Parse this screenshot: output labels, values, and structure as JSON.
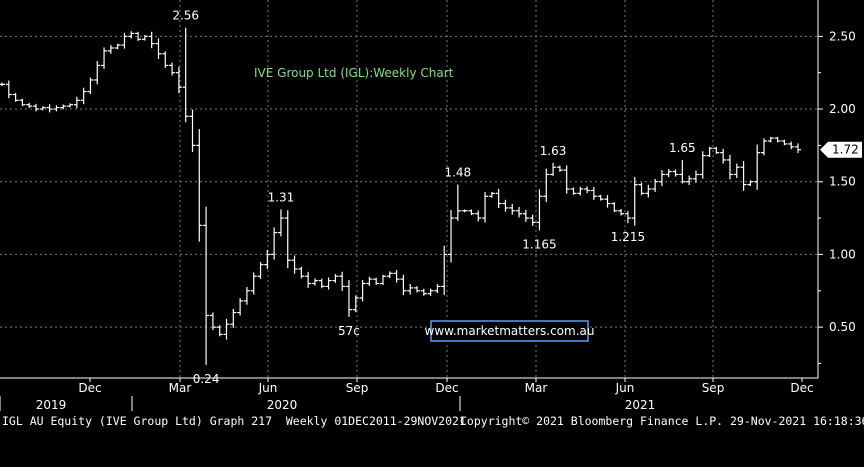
{
  "chart_data": {
    "type": "ohlc",
    "title": "IVE Group Ltd (IGL):Weekly Chart",
    "ylim": [
      0.15,
      2.75
    ],
    "y_ticks": [
      0.5,
      1.0,
      1.5,
      2.0,
      2.5
    ],
    "y_tick_labels": [
      "0.50",
      "1.00",
      "1.50",
      "2.00",
      "2.50"
    ],
    "last_price_label": "1.72",
    "last_price": 1.72,
    "x_month_labels": [
      "Dec",
      "Mar",
      "Jun",
      "Sep",
      "Dec",
      "Mar",
      "Jun",
      "Sep",
      "Dec"
    ],
    "x_year_labels": [
      "2019",
      "2020",
      "2021"
    ],
    "grid": true,
    "weekly_close": [
      2.17,
      2.1,
      2.06,
      2.03,
      2.02,
      2.0,
      2.01,
      2.0,
      2.01,
      2.02,
      2.03,
      2.06,
      2.12,
      2.2,
      2.3,
      2.4,
      2.42,
      2.44,
      2.5,
      2.52,
      2.48,
      2.5,
      2.45,
      2.38,
      2.3,
      2.25,
      2.15,
      1.95,
      1.75,
      1.2,
      0.58,
      0.5,
      0.45,
      0.52,
      0.6,
      0.68,
      0.75,
      0.85,
      0.93,
      1.0,
      1.15,
      1.25,
      0.96,
      0.9,
      0.85,
      0.8,
      0.82,
      0.78,
      0.82,
      0.85,
      0.78,
      0.62,
      0.7,
      0.8,
      0.83,
      0.8,
      0.85,
      0.87,
      0.83,
      0.75,
      0.77,
      0.75,
      0.73,
      0.75,
      0.78,
      1.0,
      1.25,
      1.3,
      1.3,
      1.28,
      1.25,
      1.4,
      1.42,
      1.35,
      1.32,
      1.3,
      1.28,
      1.25,
      1.22,
      1.4,
      1.55,
      1.6,
      1.58,
      1.45,
      1.42,
      1.45,
      1.44,
      1.4,
      1.38,
      1.35,
      1.3,
      1.28,
      1.25,
      1.48,
      1.42,
      1.45,
      1.5,
      1.55,
      1.57,
      1.55,
      1.5,
      1.52,
      1.55,
      1.68,
      1.73,
      1.7,
      1.65,
      1.55,
      1.6,
      1.48,
      1.5,
      1.7,
      1.78,
      1.8,
      1.78,
      1.76,
      1.74,
      1.72
    ],
    "annotations": [
      {
        "text": "2.56",
        "x": 27,
        "y": 2.56,
        "pos": "above"
      },
      {
        "text": "0.24",
        "x": 30,
        "y": 0.24,
        "pos": "below"
      },
      {
        "text": "1.31",
        "x": 41,
        "y": 1.31,
        "pos": "above"
      },
      {
        "text": "57c",
        "x": 51,
        "y": 0.57,
        "pos": "below"
      },
      {
        "text": "1.48",
        "x": 67,
        "y": 1.48,
        "pos": "above"
      },
      {
        "text": "1.63",
        "x": 81,
        "y": 1.63,
        "pos": "above"
      },
      {
        "text": "1.165",
        "x": 79,
        "y": 1.165,
        "pos": "below"
      },
      {
        "text": "1.215",
        "x": 92,
        "y": 1.215,
        "pos": "below"
      },
      {
        "text": "1.65",
        "x": 100,
        "y": 1.65,
        "pos": "above"
      }
    ],
    "watermark": "www.marketmatters.com.au"
  },
  "footer": {
    "left": "IGL AU Equity (IVE Group Ltd) Graph 217  Weekly 01DEC2011-29NOV2021",
    "mid": "Copyright© 2021 Bloomberg Finance L.P.",
    "right": "29-Nov-2021 16:18:36"
  },
  "colors": {
    "price_bars": "#ffffff",
    "grid": "#7a7a7a",
    "title": "#7fe07f",
    "watermark_text": "#ffffff",
    "watermark_border": "#4fa0ff"
  }
}
